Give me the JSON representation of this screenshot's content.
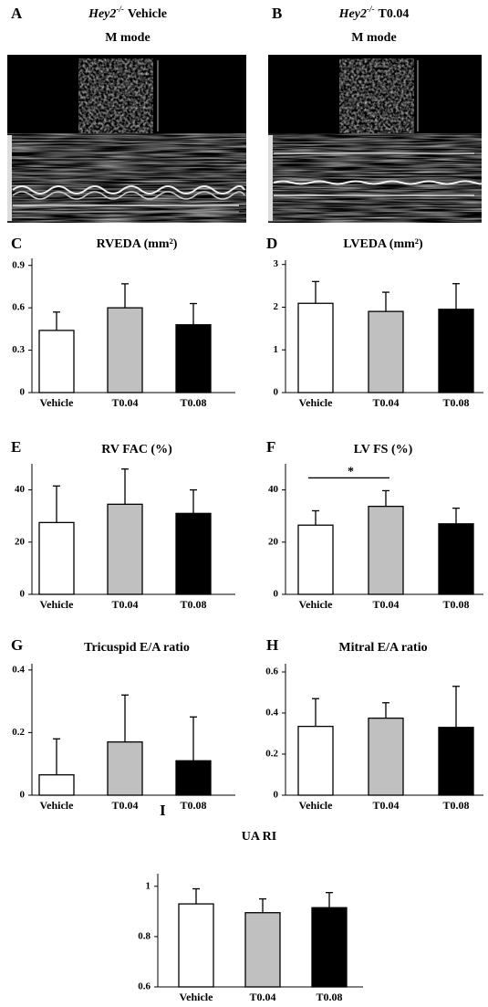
{
  "images": [
    {
      "letter": "A",
      "genotype": "Hey2",
      "superscript": "-/-",
      "treatment": "Vehicle",
      "mode": "M mode"
    },
    {
      "letter": "B",
      "genotype": "Hey2",
      "superscript": "-/-",
      "treatment": "T0.04",
      "mode": "M mode"
    }
  ],
  "chart_data": [
    {
      "type": "bar",
      "letter": "C",
      "title": "RVEDA (mm²)",
      "categories": [
        "Vehicle",
        "T0.04",
        "T0.08"
      ],
      "values": [
        0.44,
        0.6,
        0.48
      ],
      "errors": [
        0.13,
        0.17,
        0.15
      ],
      "colors": [
        "#ffffff",
        "#c0c0c0",
        "#000000"
      ],
      "ylim": [
        0,
        0.95
      ],
      "yticks": [
        0,
        0.3,
        0.6,
        0.9
      ]
    },
    {
      "type": "bar",
      "letter": "D",
      "title": "LVEDA (mm²)",
      "categories": [
        "Vehicle",
        "T0.04",
        "T0.08"
      ],
      "values": [
        2.09,
        1.9,
        1.95
      ],
      "errors": [
        0.51,
        0.45,
        0.6
      ],
      "colors": [
        "#ffffff",
        "#c0c0c0",
        "#000000"
      ],
      "ylim": [
        0,
        3.1
      ],
      "yticks": [
        0,
        1,
        2,
        3
      ]
    },
    {
      "type": "bar",
      "letter": "E",
      "title": "RV FAC (%)",
      "categories": [
        "Vehicle",
        "T0.04",
        "T0.08"
      ],
      "values": [
        27.5,
        34.5,
        31
      ],
      "errors": [
        14,
        13.5,
        9
      ],
      "colors": [
        "#ffffff",
        "#c0c0c0",
        "#000000"
      ],
      "ylim": [
        0,
        50
      ],
      "yticks": [
        0,
        20,
        40
      ]
    },
    {
      "type": "bar",
      "letter": "F",
      "title": "LV FS (%)",
      "categories": [
        "Vehicle",
        "T0.04",
        "T0.08"
      ],
      "values": [
        26.5,
        33.7,
        27
      ],
      "errors": [
        5.5,
        6,
        6
      ],
      "colors": [
        "#ffffff",
        "#c0c0c0",
        "#000000"
      ],
      "ylim": [
        0,
        50
      ],
      "yticks": [
        0,
        20,
        40
      ],
      "significance": [
        {
          "label": "*",
          "pair": [
            0,
            1
          ]
        }
      ]
    },
    {
      "type": "bar",
      "letter": "G",
      "title": "Tricuspid E/A ratio",
      "categories": [
        "Vehicle",
        "T0.04",
        "T0.08"
      ],
      "values": [
        0.065,
        0.17,
        0.11
      ],
      "errors": [
        0.115,
        0.15,
        0.14
      ],
      "colors": [
        "#ffffff",
        "#c0c0c0",
        "#000000"
      ],
      "ylim": [
        0,
        0.42
      ],
      "yticks": [
        0,
        0.2,
        0.4
      ]
    },
    {
      "type": "bar",
      "letter": "H",
      "title": "Mitral E/A ratio",
      "categories": [
        "Vehicle",
        "T0.04",
        "T0.08"
      ],
      "values": [
        0.335,
        0.375,
        0.33
      ],
      "errors": [
        0.135,
        0.075,
        0.2
      ],
      "colors": [
        "#ffffff",
        "#c0c0c0",
        "#000000"
      ],
      "ylim": [
        0,
        0.64
      ],
      "yticks": [
        0,
        0.2,
        0.4,
        0.6
      ]
    },
    {
      "type": "bar",
      "letter": "I",
      "title": "UA RI",
      "categories": [
        "Vehicle",
        "T0.04",
        "T0.08"
      ],
      "values": [
        0.93,
        0.895,
        0.915
      ],
      "errors": [
        0.06,
        0.055,
        0.06
      ],
      "colors": [
        "#ffffff",
        "#c0c0c0",
        "#000000"
      ],
      "ylim": [
        0.6,
        1.05
      ],
      "yticks": [
        0.6,
        0.8,
        1
      ]
    }
  ]
}
